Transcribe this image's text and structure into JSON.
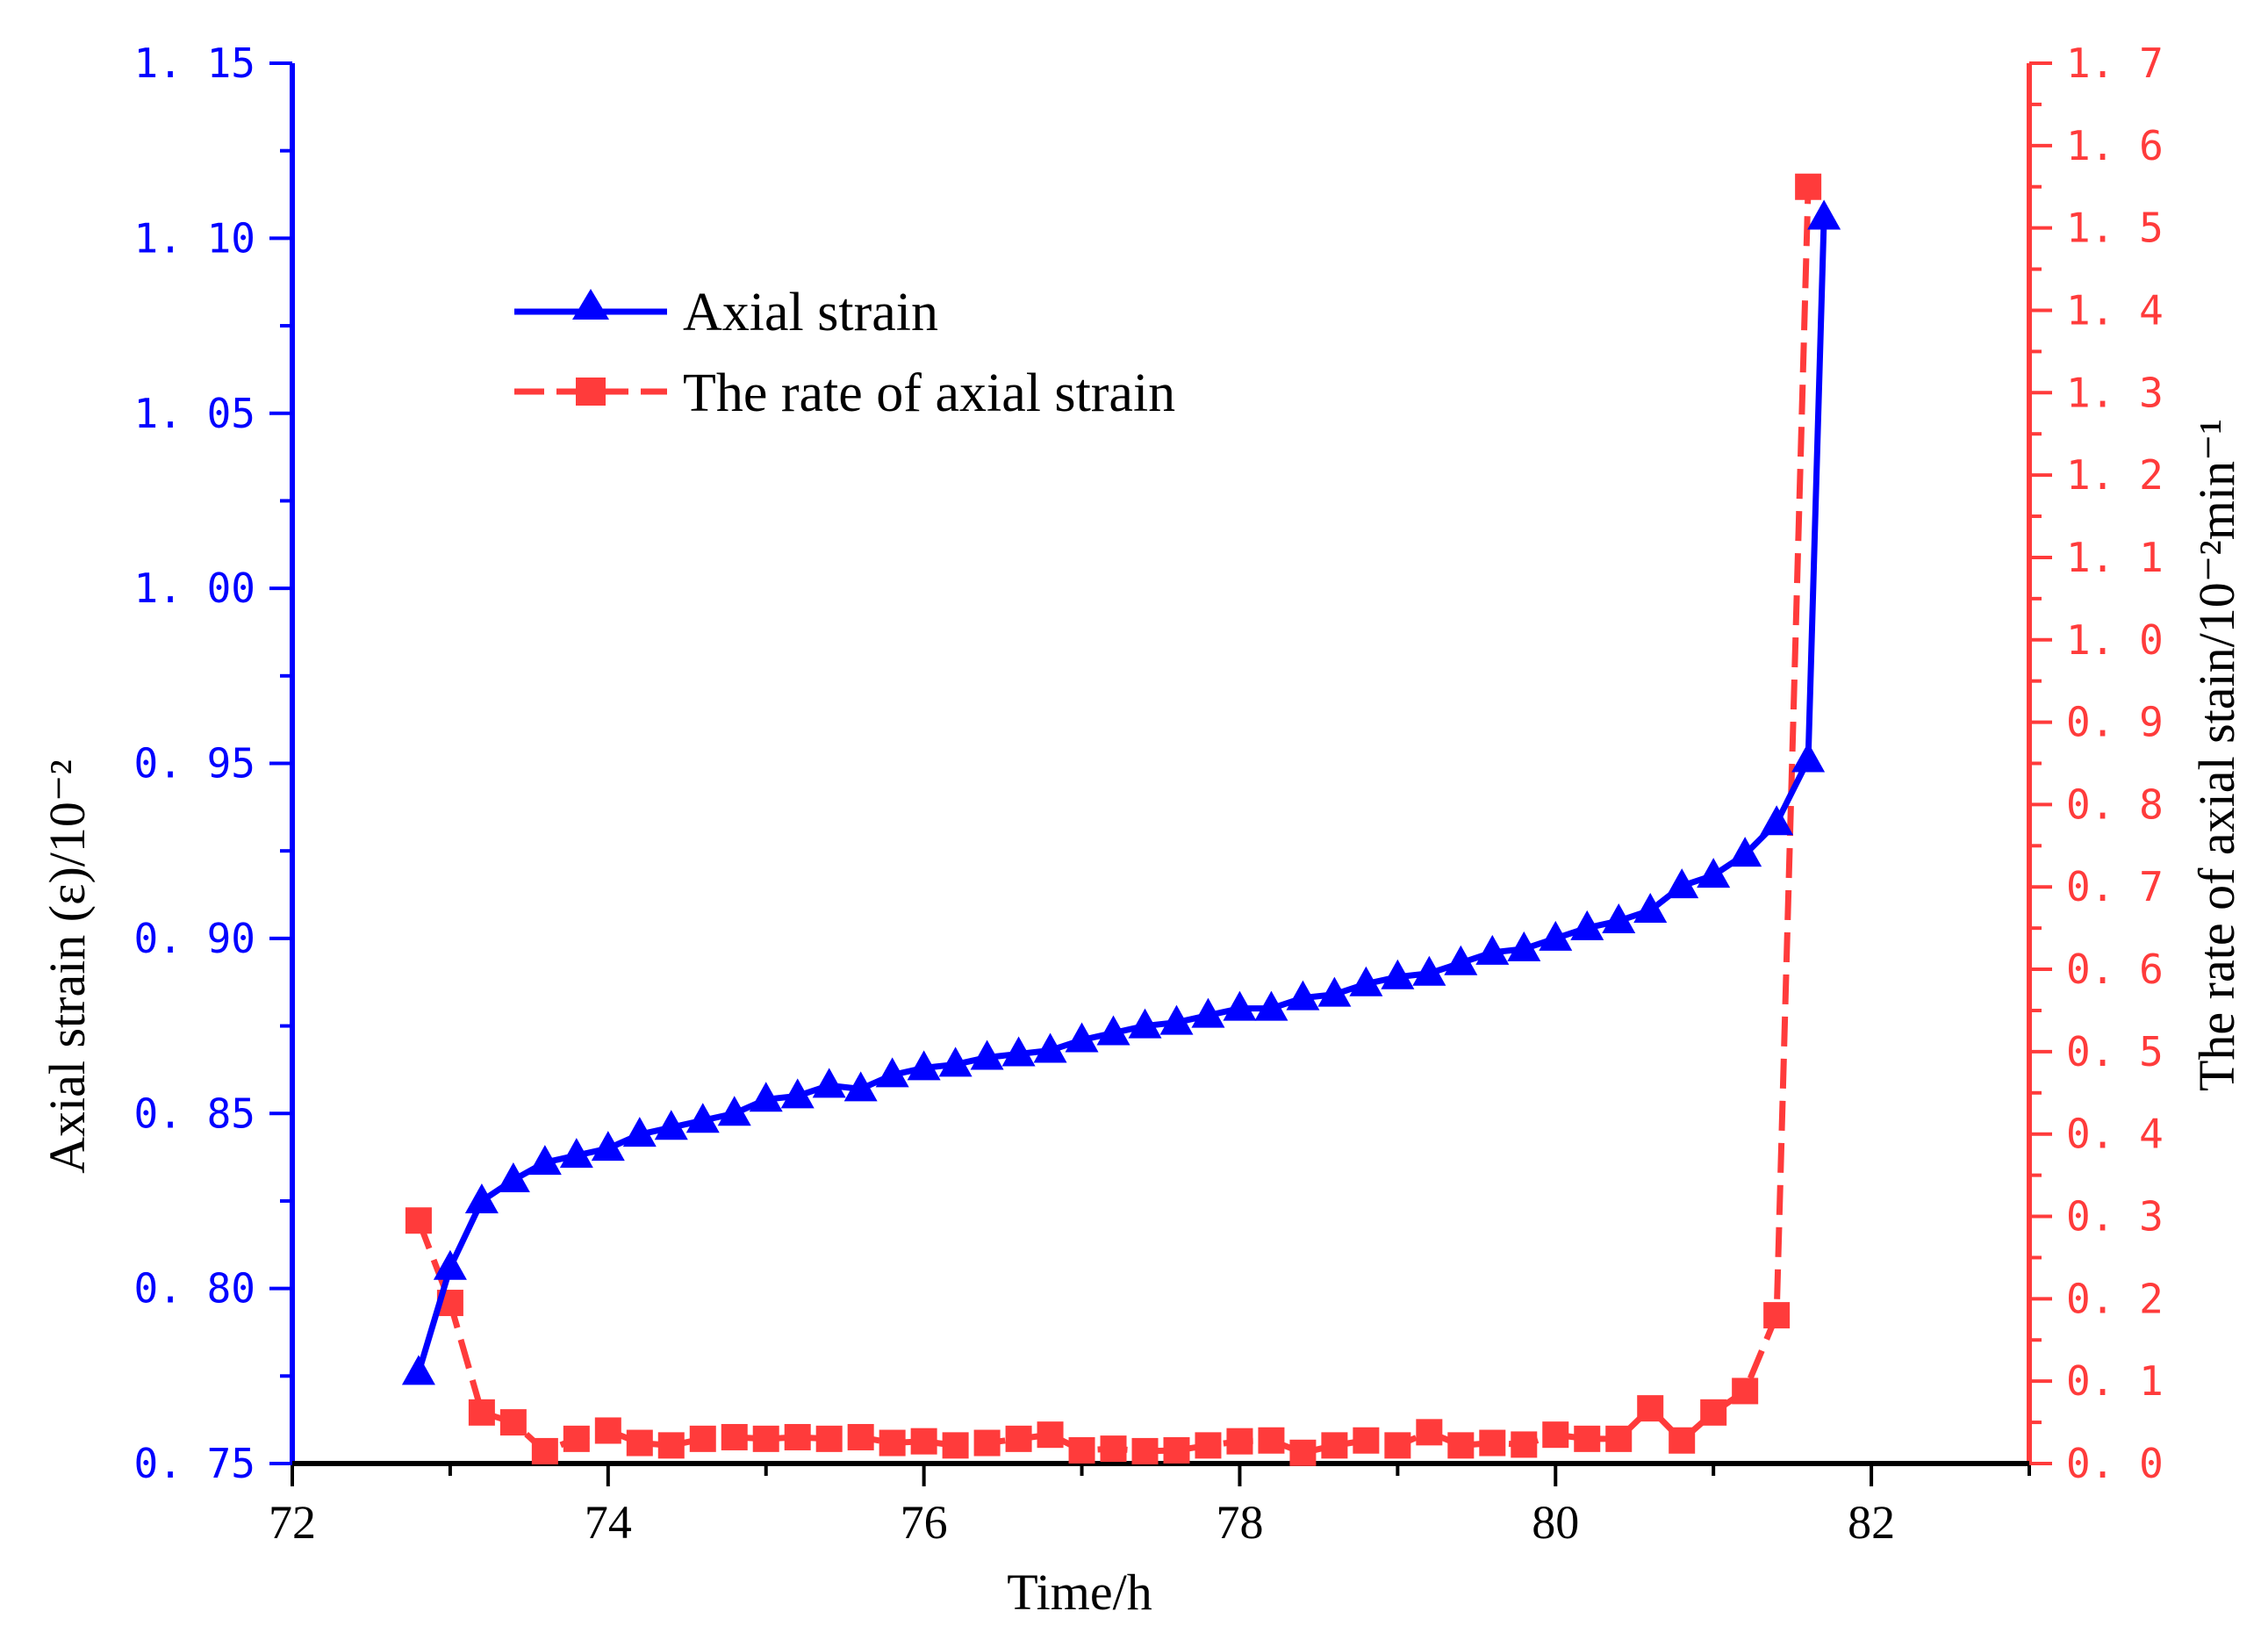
{
  "chart_data": {
    "type": "line",
    "title": "",
    "xlabel": "Time/h",
    "ylabel_left": "Axial strain (ε)/10⁻²",
    "ylabel_right": "The rate of axial stain/10⁻²min⁻¹",
    "xlim": [
      72,
      83
    ],
    "ylim_left": [
      0.75,
      1.15
    ],
    "ylim_right": [
      0.0,
      1.7
    ],
    "x_ticks": [
      72,
      74,
      76,
      78,
      80,
      82
    ],
    "y_left_ticks": [
      0.75,
      0.8,
      0.85,
      0.9,
      0.95,
      1.0,
      1.05,
      1.1,
      1.15
    ],
    "y_right_ticks": [
      0.0,
      0.1,
      0.2,
      0.3,
      0.4,
      0.5,
      0.6,
      0.7,
      0.8,
      0.9,
      1.0,
      1.1,
      1.2,
      1.3,
      1.4,
      1.5,
      1.6,
      1.7
    ],
    "x_tick_labels": [
      "72",
      "74",
      "76",
      "78",
      "80",
      "82"
    ],
    "y_left_tick_labels": [
      "0. 75",
      "0. 80",
      "0. 85",
      "0. 90",
      "0. 95",
      "1. 00",
      "1. 05",
      "1. 10",
      "1. 15"
    ],
    "y_right_tick_labels": [
      "0. 0",
      "0. 1",
      "0. 2",
      "0. 3",
      "0. 4",
      "0. 5",
      "0. 6",
      "0. 7",
      "0. 8",
      "0. 9",
      "1. 0",
      "1. 1",
      "1. 2",
      "1. 3",
      "1. 4",
      "1. 5",
      "1. 6",
      "1. 7"
    ],
    "legend": {
      "position": "upper-left",
      "entries": [
        "Axial strain",
        "The rate of axial strain"
      ]
    },
    "series": [
      {
        "name": "Axial strain",
        "axis": "left",
        "color": "#0000ff",
        "marker": "triangle",
        "line": "solid",
        "x": [
          72.8,
          73.0,
          73.2,
          73.4,
          73.6,
          73.8,
          74.0,
          74.2,
          74.4,
          74.6,
          74.8,
          75.0,
          75.2,
          75.4,
          75.6,
          75.8,
          76.0,
          76.2,
          76.4,
          76.6,
          76.8,
          77.0,
          77.2,
          77.4,
          77.6,
          77.8,
          78.0,
          78.2,
          78.4,
          78.6,
          78.8,
          79.0,
          79.2,
          79.4,
          79.6,
          79.8,
          80.0,
          80.2,
          80.4,
          80.6,
          80.8,
          81.0,
          81.2,
          81.4,
          81.6,
          81.7
        ],
        "values": [
          0.776,
          0.806,
          0.825,
          0.831,
          0.836,
          0.838,
          0.84,
          0.844,
          0.846,
          0.848,
          0.85,
          0.854,
          0.855,
          0.858,
          0.857,
          0.861,
          0.863,
          0.864,
          0.866,
          0.867,
          0.868,
          0.871,
          0.873,
          0.875,
          0.876,
          0.878,
          0.88,
          0.88,
          0.883,
          0.884,
          0.887,
          0.889,
          0.89,
          0.893,
          0.896,
          0.897,
          0.9,
          0.903,
          0.905,
          0.908,
          0.915,
          0.918,
          0.924,
          0.933,
          0.951,
          1.106
        ]
      },
      {
        "name": "The rate of axial strain",
        "axis": "right",
        "color": "#ff3b3b",
        "marker": "square",
        "line": "dashed",
        "x": [
          72.8,
          73.0,
          73.2,
          73.4,
          73.6,
          73.8,
          74.0,
          74.2,
          74.4,
          74.6,
          74.8,
          75.0,
          75.2,
          75.4,
          75.6,
          75.8,
          76.0,
          76.2,
          76.4,
          76.6,
          76.8,
          77.0,
          77.2,
          77.4,
          77.6,
          77.8,
          78.0,
          78.2,
          78.4,
          78.6,
          78.8,
          79.0,
          79.2,
          79.4,
          79.6,
          79.8,
          80.0,
          80.2,
          80.4,
          80.6,
          80.8,
          81.0,
          81.2,
          81.4,
          81.6
        ],
        "values": [
          0.295,
          0.195,
          0.062,
          0.05,
          0.015,
          0.03,
          0.04,
          0.025,
          0.022,
          0.03,
          0.032,
          0.03,
          0.032,
          0.03,
          0.032,
          0.025,
          0.027,
          0.022,
          0.025,
          0.03,
          0.035,
          0.016,
          0.018,
          0.015,
          0.016,
          0.022,
          0.027,
          0.028,
          0.013,
          0.022,
          0.028,
          0.022,
          0.038,
          0.022,
          0.025,
          0.023,
          0.035,
          0.03,
          0.03,
          0.067,
          0.028,
          0.062,
          0.088,
          0.18,
          1.55
        ]
      }
    ]
  }
}
